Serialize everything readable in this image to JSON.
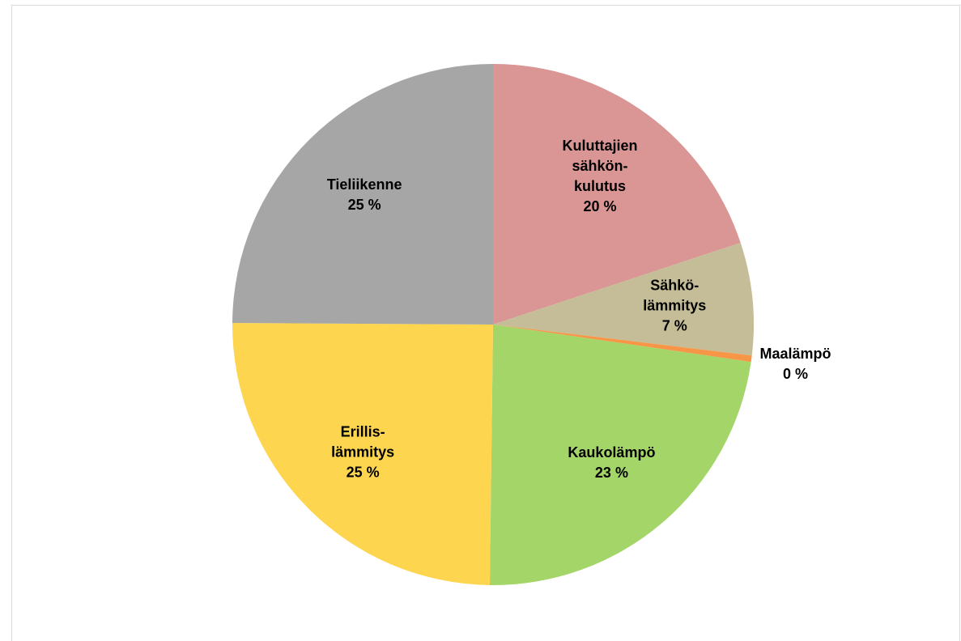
{
  "chart_data": {
    "type": "pie",
    "categories": [
      "Kuluttajien\nsähkön-\nkulutus",
      "Sähkö-\nlämmitys",
      "Maalämpö",
      "Kaukolämpö",
      "Erillis-\nlämmitys",
      "Tieliikenne"
    ],
    "values": [
      20,
      7,
      0.4,
      23,
      25,
      25
    ],
    "value_labels": [
      "20 %",
      "7 %",
      "0 %",
      "23 %",
      "25 %",
      "25 %"
    ],
    "colors": [
      "#d99694",
      "#c4bd97",
      "#f79646",
      "#a3d569",
      "#fdd54f",
      "#a6a6a6"
    ]
  }
}
